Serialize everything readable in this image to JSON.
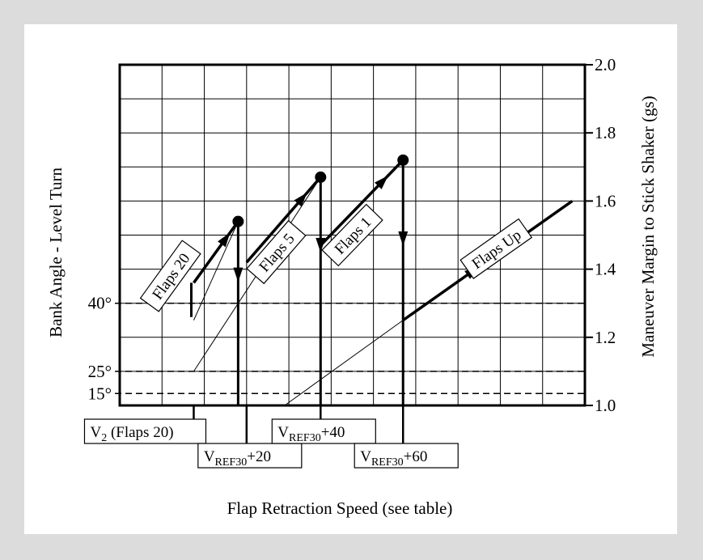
{
  "chart_data": {
    "type": "line",
    "xlabel": "Flap Retraction Speed (see table)",
    "ylabel_left": "Bank Angle - Level Turn",
    "ylabel_right": "Maneuver Margin to Stick Shaker (gs)",
    "y_right_range": [
      1.0,
      2.0
    ],
    "y_right_ticks": [
      "1.0",
      "1.2",
      "1.4",
      "1.6",
      "1.8",
      "2.0"
    ],
    "bank_angle_lines": [
      {
        "label": "40°",
        "g": 1.3
      },
      {
        "label": "25°",
        "g": 1.1
      },
      {
        "label": "15°",
        "g": 1.035
      }
    ],
    "x_grid_cells": 11,
    "grid": true,
    "speed_labels": [
      {
        "main": "V",
        "sub": "2",
        "suffix": " (Flaps 20)",
        "x": 1.75
      },
      {
        "main": "V",
        "sub": "REF30",
        "suffix": "+20",
        "x": 3.0
      },
      {
        "main": "V",
        "sub": "REF30",
        "suffix": "+40",
        "x": 4.75
      },
      {
        "main": "V",
        "sub": "REF30",
        "suffix": "+60",
        "x": 6.7
      }
    ],
    "series": [
      {
        "name": "Flaps 20",
        "x": [
          1.75,
          2.8
        ],
        "y": [
          1.36,
          1.54
        ]
      },
      {
        "name": "Flaps 5",
        "x": [
          3.0,
          4.75
        ],
        "y": [
          1.42,
          1.67
        ]
      },
      {
        "name": "Flaps 1",
        "x": [
          4.75,
          6.7
        ],
        "y": [
          1.47,
          1.72
        ]
      },
      {
        "name": "Flaps Up",
        "x": [
          6.7,
          10.7
        ],
        "y": [
          1.25,
          1.6
        ]
      }
    ],
    "reference_lines": [
      {
        "x": [
          1.75,
          2.8
        ],
        "y": [
          1.25,
          1.54
        ]
      },
      {
        "x": [
          1.75,
          4.75
        ],
        "y": [
          1.1,
          1.67
        ]
      },
      {
        "x": [
          3.9,
          6.7
        ],
        "y": [
          1.0,
          1.25
        ]
      }
    ],
    "drops": [
      {
        "x": 2.8,
        "from": 1.54,
        "to": 1.0
      },
      {
        "x": 4.75,
        "from": 1.67,
        "to": 1.0
      },
      {
        "x": 6.7,
        "from": 1.72,
        "to": 1.0
      }
    ]
  }
}
